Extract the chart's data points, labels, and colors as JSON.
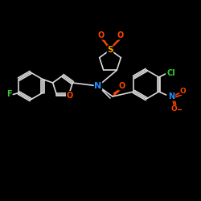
{
  "bg": "#000000",
  "bc": "#d8d8d8",
  "O_color": "#ff4500",
  "N_color": "#1e90ff",
  "S_color": "#ffa500",
  "F_color": "#32cd32",
  "Cl_color": "#32cd32",
  "figsize": [
    2.5,
    2.5
  ],
  "dpi": 100,
  "xlim": [
    0,
    250
  ],
  "ylim": [
    0,
    250
  ]
}
